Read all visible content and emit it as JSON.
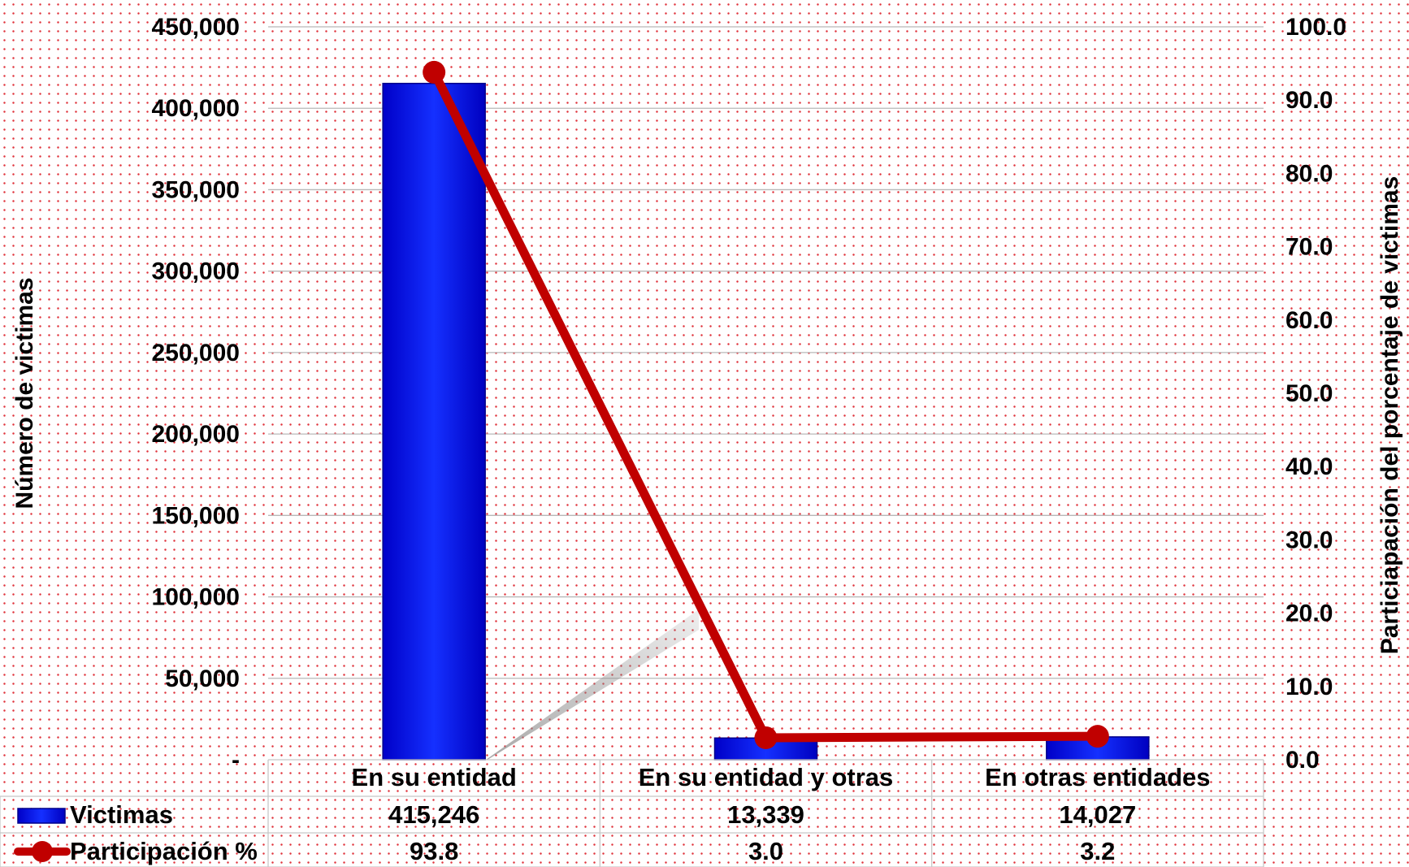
{
  "chart_data": {
    "type": "bar",
    "categories": [
      "En su entidad",
      "En su entidad y otras",
      "En otras entidades"
    ],
    "series": [
      {
        "name": "Victimas",
        "type": "bar",
        "axis": "left",
        "color": "#0a1eff",
        "values": [
          415246,
          13339,
          14027
        ],
        "labels": [
          "415,246",
          "13,339",
          "14,027"
        ]
      },
      {
        "name": "Participación %",
        "type": "line",
        "axis": "right",
        "color": "#c00000",
        "values": [
          93.8,
          3.0,
          3.2
        ],
        "labels": [
          "93.8",
          "3.0",
          "3.2"
        ]
      }
    ],
    "ylabel": "Número de victimas",
    "y2label": "Particiapación del porcentaje de victimas",
    "ylim": [
      0,
      450000
    ],
    "y2lim": [
      0,
      100
    ],
    "y_ticks": [
      "-",
      "50,000",
      "100,000",
      "150,000",
      "200,000",
      "250,000",
      "300,000",
      "350,000",
      "400,000",
      "450,000"
    ],
    "y2_ticks": [
      "0.0",
      "10.0",
      "20.0",
      "30.0",
      "40.0",
      "50.0",
      "60.0",
      "70.0",
      "80.0",
      "90.0",
      "100.0"
    ],
    "grid": true,
    "legend": "data-table"
  }
}
